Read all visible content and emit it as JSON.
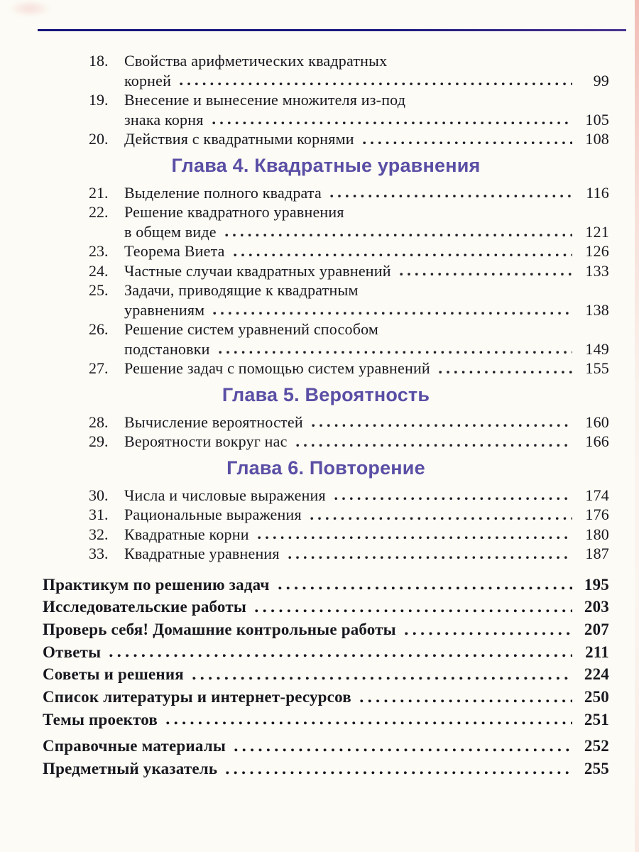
{
  "colors": {
    "chapter_heading": "#5a4fa5",
    "top_rule": "#1c1a7e",
    "body_text": "#18181f",
    "page_background": "#fcfbf5",
    "page_edge_tint": "#e87e78"
  },
  "toc": {
    "sections": [
      {
        "type": "entries",
        "items": [
          {
            "num": "18.",
            "pre": [
              "Свойства арифметических квадратных"
            ],
            "last": "корней",
            "page": "99"
          },
          {
            "num": "19.",
            "pre": [
              "Внесение и вынесение множителя из-под"
            ],
            "last": "знака корня",
            "page": "105"
          },
          {
            "num": "20.",
            "pre": [],
            "last": "Действия с квадратными корнями",
            "page": "108"
          }
        ]
      },
      {
        "type": "chapter",
        "title": "Глава 4. Квадратные уравнения"
      },
      {
        "type": "entries",
        "items": [
          {
            "num": "21.",
            "pre": [],
            "last": "Выделение полного квадрата",
            "page": "116"
          },
          {
            "num": "22.",
            "pre": [
              "Решение квадратного уравнения"
            ],
            "last": "в общем виде",
            "page": "121"
          },
          {
            "num": "23.",
            "pre": [],
            "last": "Теорема Виета",
            "page": "126"
          },
          {
            "num": "24.",
            "pre": [],
            "last": "Частные случаи квадратных уравнений",
            "page": "133"
          },
          {
            "num": "25.",
            "pre": [
              "Задачи, приводящие к квадратным"
            ],
            "last": "уравнениям",
            "page": "138"
          },
          {
            "num": "26.",
            "pre": [
              "Решение систем уравнений способом"
            ],
            "last": "подстановки",
            "page": "149"
          },
          {
            "num": "27.",
            "pre": [],
            "last": "Решение задач с помощью систем уравнений",
            "page": "155"
          }
        ]
      },
      {
        "type": "chapter",
        "title": "Глава 5. Вероятность"
      },
      {
        "type": "entries",
        "items": [
          {
            "num": "28.",
            "pre": [],
            "last": "Вычисление вероятностей",
            "page": "160"
          },
          {
            "num": "29.",
            "pre": [],
            "last": "Вероятности вокруг нас",
            "page": "166"
          }
        ]
      },
      {
        "type": "chapter",
        "title": "Глава 6. Повторение"
      },
      {
        "type": "entries",
        "items": [
          {
            "num": "30.",
            "pre": [],
            "last": "Числа и числовые выражения",
            "page": "174"
          },
          {
            "num": "31.",
            "pre": [],
            "last": "Рациональные выражения",
            "page": "176"
          },
          {
            "num": "32.",
            "pre": [],
            "last": "Квадратные корни",
            "page": "180"
          },
          {
            "num": "33.",
            "pre": [],
            "last": "Квадратные уравнения",
            "page": "187"
          }
        ]
      },
      {
        "type": "bold_entries",
        "items": [
          {
            "pre": [],
            "last": "Практикум по решению задач",
            "page": "195"
          },
          {
            "pre": [],
            "last": "Исследовательские работы",
            "page": "203"
          },
          {
            "pre": [],
            "last": "Проверь себя! Домашние контрольные работы",
            "page": "207"
          },
          {
            "pre": [],
            "last": "Ответы",
            "page": "211"
          },
          {
            "pre": [],
            "last": "Советы и решения",
            "page": "224"
          },
          {
            "pre": [],
            "last": "Список литературы и интернет-ресурсов",
            "page": "250"
          },
          {
            "pre": [],
            "last": "Темы проектов",
            "page": "251"
          },
          {
            "pre": [],
            "last": "Справочные материалы",
            "page": "252"
          },
          {
            "pre": [],
            "last": "Предметный указатель",
            "page": "255"
          }
        ]
      }
    ]
  }
}
